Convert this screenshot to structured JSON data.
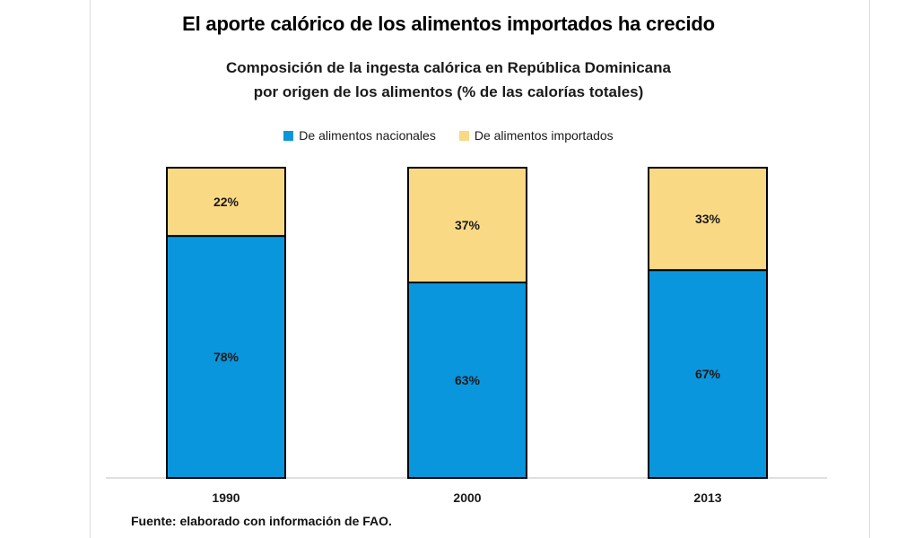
{
  "chart_data": {
    "type": "bar",
    "stacked": true,
    "title": "El aporte calórico de los alimentos importados ha crecido",
    "subtitle": [
      "Composición de la ingesta calórica en República Dominicana",
      "por origen de los alimentos  (% de las calorías totales)"
    ],
    "categories": [
      "1990",
      "2000",
      "2013"
    ],
    "series": [
      {
        "name": "De alimentos nacionales",
        "values": [
          78,
          63,
          67
        ],
        "labels": [
          "78%",
          "63%",
          "67%"
        ],
        "color": "#0a96dc"
      },
      {
        "name": "De alimentos importados",
        "values": [
          22,
          37,
          33
        ],
        "labels": [
          "22%",
          "37%",
          "33%"
        ],
        "color": "#fad985"
      }
    ],
    "ylim": [
      0,
      100
    ],
    "grid": false,
    "legend": "top-center",
    "source": "Fuente: elaborado con información de FAO."
  }
}
